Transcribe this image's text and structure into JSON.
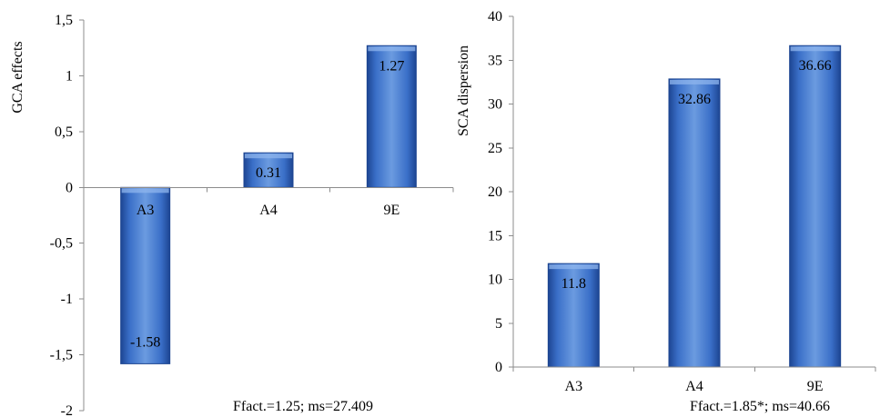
{
  "chart_data": [
    {
      "type": "bar",
      "categories": [
        "A3",
        "A4",
        "9E"
      ],
      "values": [
        -1.58,
        0.31,
        1.27
      ],
      "value_labels": [
        "-1.58",
        "0.31",
        "1.27"
      ],
      "ylabel": "GCA effects",
      "ylim": [
        -2,
        1.5
      ],
      "yticks": [
        "-2",
        "-1,5",
        "-1",
        "-0,5",
        "0",
        "0,5",
        "1",
        "1,5"
      ],
      "note": "Ffact.=1.25; ms=27.409",
      "grid": false,
      "legend": "none"
    },
    {
      "type": "bar",
      "categories": [
        "A3",
        "A4",
        "9E"
      ],
      "values": [
        11.8,
        32.86,
        36.66
      ],
      "value_labels": [
        "11.8",
        "32.86",
        "36.66"
      ],
      "ylabel": "SCA dispersion",
      "ylim": [
        0,
        40
      ],
      "yticks": [
        "0",
        "5",
        "10",
        "15",
        "20",
        "25",
        "30",
        "35",
        "40"
      ],
      "note": "Ffact.=1.85*; ms=40.66",
      "grid": false,
      "legend": "none"
    }
  ],
  "colors": {
    "bar_light": "#6b9be0",
    "bar_mid": "#3a6fc8",
    "bar_dark": "#1d4592",
    "bar_top": "#8fb5ee",
    "label_dot": "#d9433c"
  }
}
